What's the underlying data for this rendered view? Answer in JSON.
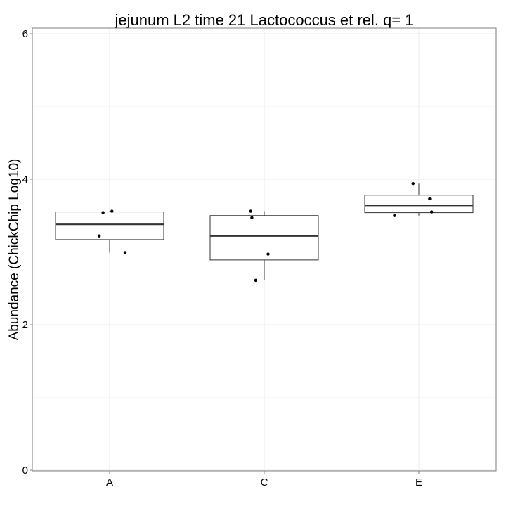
{
  "chart_data": {
    "type": "boxplot",
    "title": "jejunum L2 time 21 Lactococcus et rel. q= 1",
    "xlabel": "",
    "ylabel": "Abundance (ChickChip Log10)",
    "ylim": [
      0,
      6
    ],
    "yticks": [
      0,
      2,
      4,
      6
    ],
    "grid": true,
    "categories": [
      "A",
      "C",
      "E"
    ],
    "boxes": [
      {
        "category": "A",
        "min": 2.99,
        "q1": 3.17,
        "median": 3.38,
        "q3": 3.55,
        "max": 3.56
      },
      {
        "category": "C",
        "min": 2.61,
        "q1": 2.89,
        "median": 3.22,
        "q3": 3.5,
        "max": 3.56
      },
      {
        "category": "E",
        "min": 3.5,
        "q1": 3.54,
        "median": 3.64,
        "q3": 3.78,
        "max": 3.94
      }
    ],
    "points": [
      {
        "category": "A",
        "y": 3.54,
        "jitter": -0.17
      },
      {
        "category": "A",
        "y": 3.56,
        "jitter": 0.06
      },
      {
        "category": "A",
        "y": 3.22,
        "jitter": -0.27
      },
      {
        "category": "A",
        "y": 2.99,
        "jitter": 0.4
      },
      {
        "category": "C",
        "y": 3.56,
        "jitter": -0.35
      },
      {
        "category": "C",
        "y": 3.47,
        "jitter": -0.32
      },
      {
        "category": "C",
        "y": 2.97,
        "jitter": 0.1
      },
      {
        "category": "C",
        "y": 2.61,
        "jitter": -0.22
      },
      {
        "category": "E",
        "y": 3.5,
        "jitter": -0.63
      },
      {
        "category": "E",
        "y": 3.94,
        "jitter": -0.15
      },
      {
        "category": "E",
        "y": 3.73,
        "jitter": 0.28
      },
      {
        "category": "E",
        "y": 3.55,
        "jitter": 0.33
      }
    ]
  }
}
